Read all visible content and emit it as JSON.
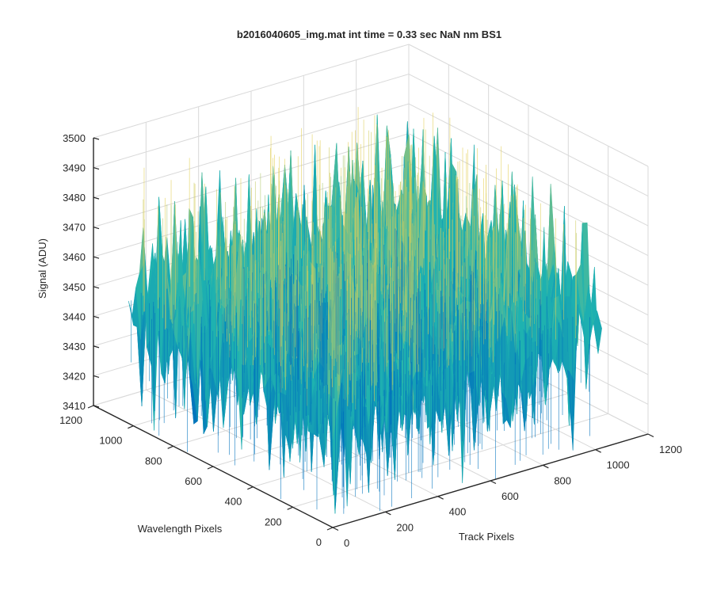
{
  "chart_data": {
    "type": "surface",
    "title": "b2016040605_img.mat int time = 0.33 sec  NaN nm BS1",
    "xlabel": "Track Pixels",
    "ylabel": "Wavelength Pixels",
    "zlabel": "Signal (ADU)",
    "xlim": [
      0,
      1200
    ],
    "ylim": [
      0,
      1200
    ],
    "zlim": [
      3410,
      3500
    ],
    "x_ticks": [
      "0",
      "200",
      "400",
      "600",
      "800",
      "1000",
      "1200"
    ],
    "y_ticks": [
      "0",
      "200",
      "400",
      "600",
      "800",
      "1000",
      "1200"
    ],
    "z_ticks": [
      "3410",
      "3420",
      "3430",
      "3440",
      "3450",
      "3460",
      "3470",
      "3480",
      "3490",
      "3500"
    ],
    "data_extent": {
      "x": [
        0,
        1024
      ],
      "y": [
        0,
        1024
      ]
    },
    "signal_level": {
      "mean": 3450,
      "min": 3420,
      "max": 3490
    },
    "grid": true,
    "colormap": "parula",
    "colors": {
      "low": "#0072bd",
      "mid": "#1fb3b0",
      "high": "#e3cf56"
    }
  }
}
